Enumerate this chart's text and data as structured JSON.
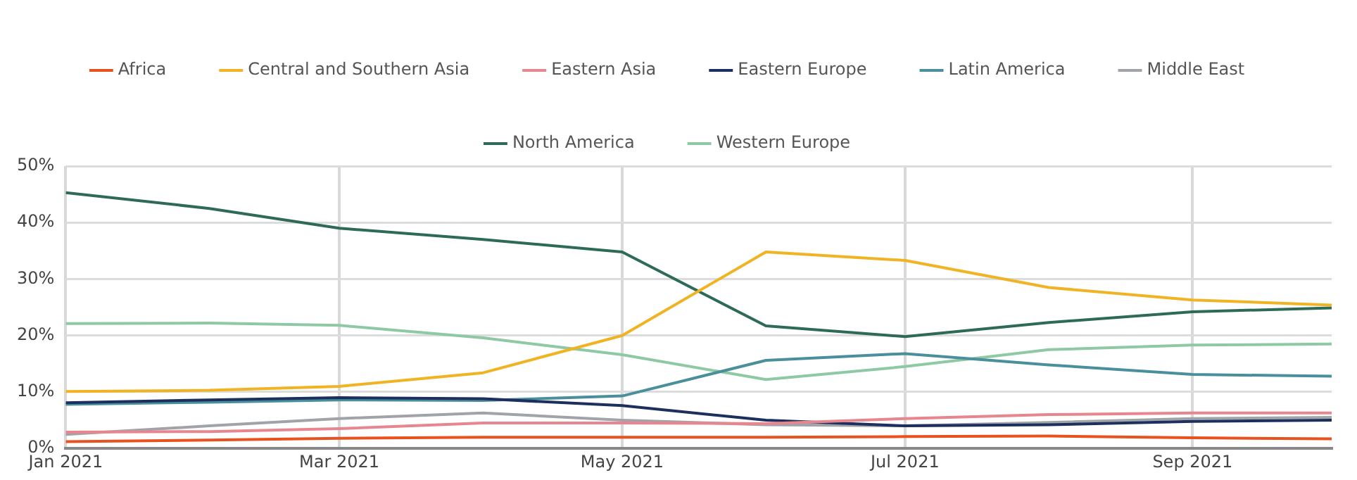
{
  "chart_data": {
    "type": "line",
    "x": [
      "2021-01",
      "2021-02",
      "2021-03",
      "2021-04",
      "2021-05",
      "2021-06",
      "2021-07",
      "2021-08",
      "2021-09",
      "2021-10"
    ],
    "series": [
      {
        "name": "Africa",
        "color": "#e8521f",
        "values": [
          1.2,
          1.5,
          1.8,
          2.0,
          2.0,
          2.0,
          2.1,
          2.2,
          1.9,
          1.7
        ]
      },
      {
        "name": "Central and Southern Asia",
        "color": "#f0b323",
        "values": [
          10.1,
          10.3,
          11,
          13.4,
          20,
          34.8,
          33.3,
          28.5,
          26.3,
          25.4
        ]
      },
      {
        "name": "Eastern Asia",
        "color": "#e8868f",
        "values": [
          2.9,
          3.0,
          3.5,
          4.5,
          4.5,
          4.4,
          5.3,
          6.0,
          6.3,
          6.3
        ]
      },
      {
        "name": "Eastern Europe",
        "color": "#1d2f5e",
        "values": [
          8.1,
          8.6,
          9.0,
          8.8,
          7.6,
          5.0,
          4.0,
          4.2,
          4.8,
          5.0
        ]
      },
      {
        "name": "Latin America",
        "color": "#4a8f9c",
        "values": [
          7.8,
          8.2,
          8.6,
          8.5,
          9.3,
          15.6,
          16.8,
          14.8,
          13.1,
          12.8
        ]
      },
      {
        "name": "Middle East",
        "color": "#a0a4a8",
        "values": [
          2.5,
          4.0,
          5.3,
          6.3,
          5.0,
          4.2,
          4.0,
          4.6,
          5.3,
          5.5
        ]
      },
      {
        "name": "North America",
        "color": "#2e6b57",
        "values": [
          45.3,
          42.5,
          39,
          37,
          34.8,
          21.7,
          19.8,
          22.3,
          24.2,
          24.9
        ]
      },
      {
        "name": "Western Europe",
        "color": "#8fc9a3",
        "values": [
          22.1,
          22.2,
          21.8,
          19.6,
          16.6,
          12.2,
          14.5,
          17.5,
          18.3,
          18.5
        ]
      }
    ],
    "xlim": [
      "2021-01",
      "2021-10"
    ],
    "xticks": [
      {
        "value": "2021-01",
        "label": "Jan 2021"
      },
      {
        "value": "2021-03",
        "label": "Mar 2021"
      },
      {
        "value": "2021-05",
        "label": "May 2021"
      },
      {
        "value": "2021-07",
        "label": "Jul 2021"
      },
      {
        "value": "2021-09",
        "label": "Sep 2021"
      }
    ],
    "ylim": [
      0,
      50
    ],
    "yticks": [
      {
        "value": 0,
        "label": "0%"
      },
      {
        "value": 10,
        "label": "10%"
      },
      {
        "value": 20,
        "label": "20%"
      },
      {
        "value": 30,
        "label": "30%"
      },
      {
        "value": 40,
        "label": "40%"
      },
      {
        "value": 50,
        "label": "50%"
      }
    ],
    "grid": true,
    "legend": "top",
    "marker": "none",
    "line_style": "solid"
  }
}
